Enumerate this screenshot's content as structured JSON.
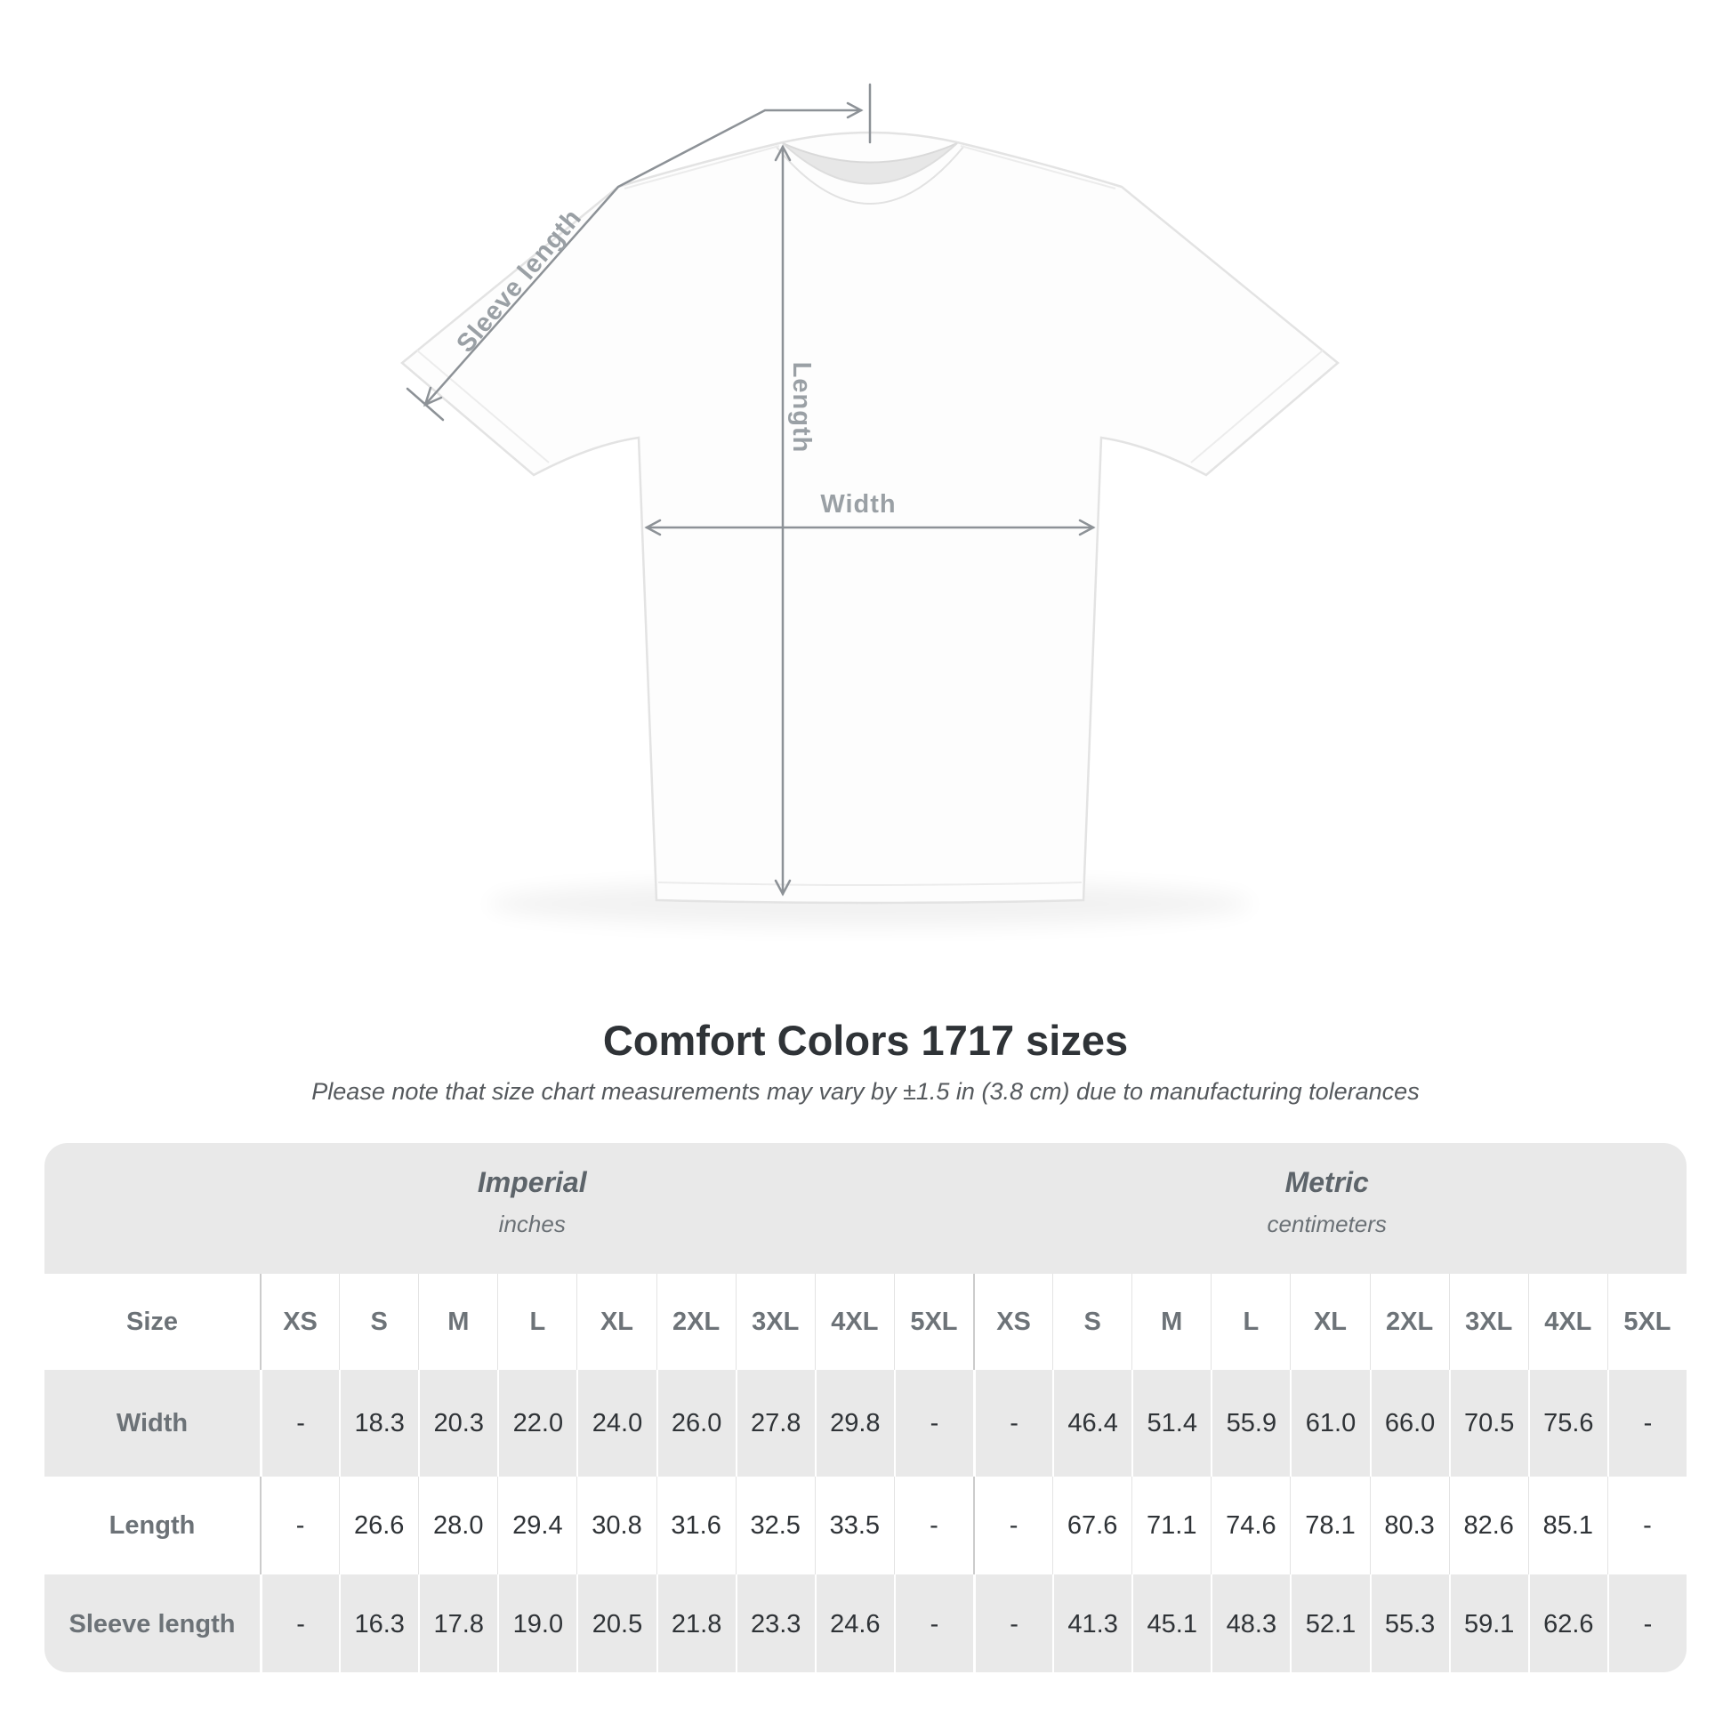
{
  "diagram": {
    "sleeve_length_label": "Sleeve length",
    "length_label": "Length",
    "width_label": "Width"
  },
  "heading": {
    "title": "Comfort Colors 1717 sizes",
    "note": "Please note that size chart measurements may vary by ±1.5 in (3.8 cm) due to manufacturing tolerances"
  },
  "chart_data": {
    "type": "table",
    "title": "Comfort Colors 1717 sizes",
    "sections": [
      {
        "label": "Imperial",
        "units": "inches"
      },
      {
        "label": "Metric",
        "units": "centimeters"
      }
    ],
    "corner_header": "Size",
    "sizes": [
      "XS",
      "S",
      "M",
      "L",
      "XL",
      "2XL",
      "3XL",
      "4XL",
      "5XL"
    ],
    "rows": [
      {
        "label": "Width",
        "imperial": [
          "-",
          "18.3",
          "20.3",
          "22.0",
          "24.0",
          "26.0",
          "27.8",
          "29.8",
          "-"
        ],
        "metric": [
          "-",
          "46.4",
          "51.4",
          "55.9",
          "61.0",
          "66.0",
          "70.5",
          "75.6",
          "-"
        ]
      },
      {
        "label": "Length",
        "imperial": [
          "-",
          "26.6",
          "28.0",
          "29.4",
          "30.8",
          "31.6",
          "32.5",
          "33.5",
          "-"
        ],
        "metric": [
          "-",
          "67.6",
          "71.1",
          "74.6",
          "78.1",
          "80.3",
          "82.6",
          "85.1",
          "-"
        ]
      },
      {
        "label": "Sleeve length",
        "imperial": [
          "-",
          "16.3",
          "17.8",
          "19.0",
          "20.5",
          "21.8",
          "23.3",
          "24.6",
          "-"
        ],
        "metric": [
          "-",
          "41.3",
          "45.1",
          "48.3",
          "52.1",
          "55.3",
          "59.1",
          "62.6",
          "-"
        ]
      }
    ],
    "layout": {
      "row_striping": "alternating",
      "stripe_color": "#e9e9e9"
    }
  },
  "colors": {
    "band_gray": "#e9e9e9",
    "row_gray": "#e9e9e9",
    "value_text": "#2f3337",
    "label_text": "#6c7277",
    "section_text": "#5d646a",
    "title_text": "#2f3337",
    "note_text": "#55595d",
    "diagram_line": "#8d9297",
    "diagram_label": "#9aa0a5"
  }
}
